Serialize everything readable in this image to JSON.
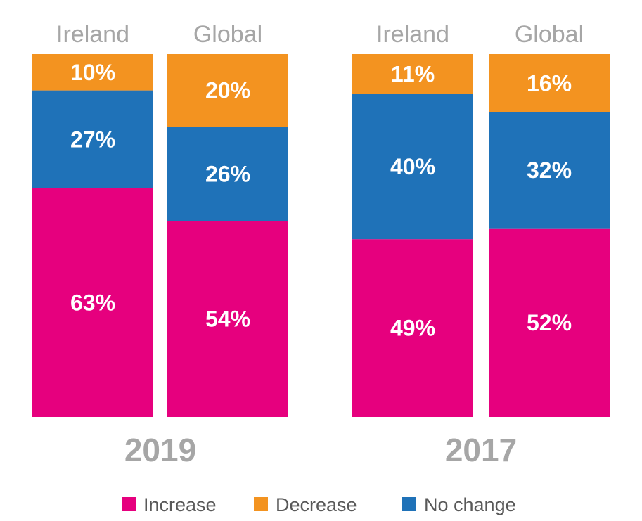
{
  "chart_data": {
    "type": "bar",
    "stacked": true,
    "groups": [
      {
        "year": "2019",
        "categories": [
          "Ireland",
          "Global"
        ]
      },
      {
        "year": "2017",
        "categories": [
          "Ireland",
          "Global"
        ]
      }
    ],
    "series": [
      {
        "name": "Increase",
        "color": "#e6007e",
        "values": [
          63,
          54,
          49,
          52
        ]
      },
      {
        "name": "No change",
        "color": "#1f72b8",
        "values": [
          27,
          26,
          40,
          32
        ]
      },
      {
        "name": "Decrease",
        "color": "#f39320",
        "values": [
          10,
          20,
          11,
          16
        ]
      }
    ],
    "value_labels": {
      "Increase": [
        "63%",
        "54%",
        "49%",
        "52%"
      ],
      "No change": [
        "27%",
        "26%",
        "40%",
        "32%"
      ],
      "Decrease": [
        "10%",
        "20%",
        "11%",
        "16%"
      ]
    },
    "legend": [
      {
        "name": "Increase",
        "color": "#e6007e"
      },
      {
        "name": "Decrease",
        "color": "#f39320"
      },
      {
        "name": "No change",
        "color": "#1f72b8"
      }
    ],
    "ylim": [
      0,
      100
    ],
    "legend_position": "bottom"
  }
}
